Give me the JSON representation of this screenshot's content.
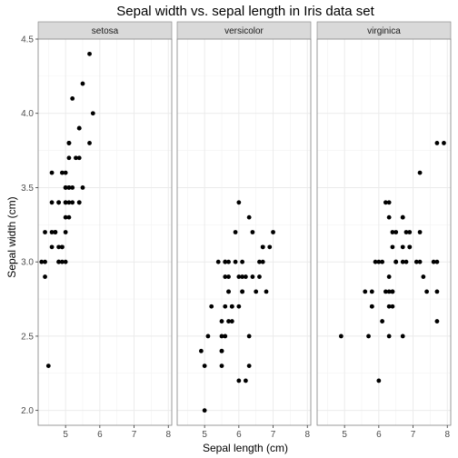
{
  "chart_data": {
    "type": "scatter",
    "title": "Sepal width vs. sepal length in Iris data set",
    "xlabel": "Sepal length (cm)",
    "ylabel": "Sepal width (cm)",
    "xlim": [
      4.2,
      8.1
    ],
    "ylim": [
      1.9,
      4.5
    ],
    "x_ticks": [
      5,
      6,
      7,
      8
    ],
    "y_ticks": [
      2.0,
      2.5,
      3.0,
      3.5,
      4.0,
      4.5
    ],
    "y_tick_labels": [
      "2.0",
      "2.5",
      "3.0",
      "3.5",
      "4.0",
      "4.5"
    ],
    "grid": true,
    "legend": "none",
    "point_color": "#000000",
    "facets": [
      {
        "label": "setosa",
        "points": [
          [
            5.1,
            3.5
          ],
          [
            4.9,
            3.0
          ],
          [
            4.7,
            3.2
          ],
          [
            4.6,
            3.1
          ],
          [
            5.0,
            3.6
          ],
          [
            5.4,
            3.9
          ],
          [
            4.6,
            3.4
          ],
          [
            5.0,
            3.4
          ],
          [
            4.4,
            2.9
          ],
          [
            4.9,
            3.1
          ],
          [
            5.4,
            3.7
          ],
          [
            4.8,
            3.4
          ],
          [
            4.8,
            3.0
          ],
          [
            4.3,
            3.0
          ],
          [
            5.8,
            4.0
          ],
          [
            5.7,
            4.4
          ],
          [
            5.4,
            3.9
          ],
          [
            5.1,
            3.5
          ],
          [
            5.7,
            3.8
          ],
          [
            5.1,
            3.8
          ],
          [
            5.4,
            3.4
          ],
          [
            5.1,
            3.7
          ],
          [
            4.6,
            3.6
          ],
          [
            5.1,
            3.3
          ],
          [
            4.8,
            3.4
          ],
          [
            5.0,
            3.0
          ],
          [
            5.0,
            3.4
          ],
          [
            5.2,
            3.5
          ],
          [
            5.2,
            3.4
          ],
          [
            4.7,
            3.2
          ],
          [
            4.8,
            3.1
          ],
          [
            5.4,
            3.4
          ],
          [
            5.2,
            4.1
          ],
          [
            5.5,
            4.2
          ],
          [
            4.9,
            3.1
          ],
          [
            5.0,
            3.2
          ],
          [
            5.5,
            3.5
          ],
          [
            4.9,
            3.6
          ],
          [
            4.4,
            3.0
          ],
          [
            5.1,
            3.4
          ],
          [
            5.0,
            3.5
          ],
          [
            4.5,
            2.3
          ],
          [
            4.4,
            3.2
          ],
          [
            5.0,
            3.5
          ],
          [
            5.1,
            3.8
          ],
          [
            4.8,
            3.0
          ],
          [
            5.1,
            3.8
          ],
          [
            4.6,
            3.2
          ],
          [
            5.3,
            3.7
          ],
          [
            5.0,
            3.3
          ]
        ]
      },
      {
        "label": "versicolor",
        "points": [
          [
            7.0,
            3.2
          ],
          [
            6.4,
            3.2
          ],
          [
            6.9,
            3.1
          ],
          [
            5.5,
            2.3
          ],
          [
            6.5,
            2.8
          ],
          [
            5.7,
            2.8
          ],
          [
            6.3,
            3.3
          ],
          [
            4.9,
            2.4
          ],
          [
            6.6,
            2.9
          ],
          [
            5.2,
            2.7
          ],
          [
            5.0,
            2.0
          ],
          [
            5.9,
            3.0
          ],
          [
            6.0,
            2.2
          ],
          [
            6.1,
            2.9
          ],
          [
            5.6,
            2.9
          ],
          [
            6.7,
            3.1
          ],
          [
            5.6,
            3.0
          ],
          [
            5.8,
            2.7
          ],
          [
            6.2,
            2.2
          ],
          [
            5.6,
            2.5
          ],
          [
            5.9,
            3.2
          ],
          [
            6.1,
            2.8
          ],
          [
            6.3,
            2.5
          ],
          [
            6.1,
            2.8
          ],
          [
            6.4,
            2.9
          ],
          [
            6.6,
            3.0
          ],
          [
            6.8,
            2.8
          ],
          [
            6.7,
            3.0
          ],
          [
            6.0,
            2.9
          ],
          [
            5.7,
            2.6
          ],
          [
            5.5,
            2.4
          ],
          [
            5.5,
            2.4
          ],
          [
            5.8,
            2.7
          ],
          [
            6.0,
            2.7
          ],
          [
            5.4,
            3.0
          ],
          [
            6.0,
            3.4
          ],
          [
            6.7,
            3.1
          ],
          [
            6.3,
            2.3
          ],
          [
            5.6,
            3.0
          ],
          [
            5.5,
            2.5
          ],
          [
            5.5,
            2.6
          ],
          [
            6.1,
            3.0
          ],
          [
            5.8,
            2.6
          ],
          [
            5.0,
            2.3
          ],
          [
            5.6,
            2.7
          ],
          [
            5.7,
            3.0
          ],
          [
            5.7,
            2.9
          ],
          [
            6.2,
            2.9
          ],
          [
            5.1,
            2.5
          ],
          [
            5.7,
            2.8
          ]
        ]
      },
      {
        "label": "virginica",
        "points": [
          [
            6.3,
            3.3
          ],
          [
            5.8,
            2.7
          ],
          [
            7.1,
            3.0
          ],
          [
            6.3,
            2.9
          ],
          [
            6.5,
            3.0
          ],
          [
            7.6,
            3.0
          ],
          [
            4.9,
            2.5
          ],
          [
            7.3,
            2.9
          ],
          [
            6.7,
            2.5
          ],
          [
            7.2,
            3.6
          ],
          [
            6.5,
            3.2
          ],
          [
            6.4,
            2.7
          ],
          [
            6.8,
            3.0
          ],
          [
            5.7,
            2.5
          ],
          [
            5.8,
            2.8
          ],
          [
            6.4,
            3.2
          ],
          [
            6.5,
            3.0
          ],
          [
            7.7,
            3.8
          ],
          [
            7.7,
            2.6
          ],
          [
            6.0,
            2.2
          ],
          [
            6.9,
            3.2
          ],
          [
            5.6,
            2.8
          ],
          [
            7.7,
            2.8
          ],
          [
            6.3,
            2.7
          ],
          [
            6.7,
            3.3
          ],
          [
            7.2,
            3.2
          ],
          [
            6.2,
            2.8
          ],
          [
            6.1,
            3.0
          ],
          [
            6.4,
            2.8
          ],
          [
            7.2,
            3.0
          ],
          [
            7.4,
            2.8
          ],
          [
            7.9,
            3.8
          ],
          [
            6.4,
            2.8
          ],
          [
            6.3,
            2.8
          ],
          [
            6.1,
            2.6
          ],
          [
            7.7,
            3.0
          ],
          [
            6.3,
            3.4
          ],
          [
            6.4,
            3.1
          ],
          [
            6.0,
            3.0
          ],
          [
            6.9,
            3.1
          ],
          [
            6.7,
            3.1
          ],
          [
            6.9,
            3.1
          ],
          [
            5.8,
            2.7
          ],
          [
            6.8,
            3.2
          ],
          [
            6.7,
            3.3
          ],
          [
            6.7,
            3.0
          ],
          [
            6.3,
            2.5
          ],
          [
            6.5,
            3.0
          ],
          [
            6.2,
            3.4
          ],
          [
            5.9,
            3.0
          ]
        ]
      }
    ]
  }
}
